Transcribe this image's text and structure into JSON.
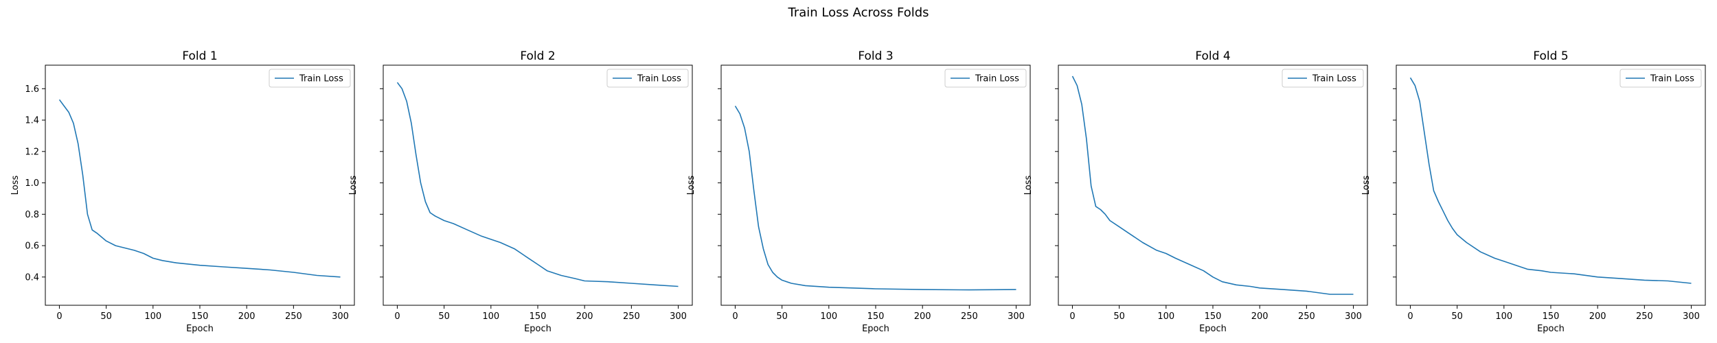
{
  "chart_data": {
    "title": "Train Loss Across Folds",
    "type": "line",
    "shared_y": true,
    "series_color": "#1f77b4",
    "legend_placement": "upper right",
    "grid": false,
    "xlabel": "Epoch",
    "ylabel": "Loss",
    "xlim": [
      -15,
      315
    ],
    "ylim": [
      0.22,
      1.75
    ],
    "xticks": [
      0,
      50,
      100,
      150,
      200,
      250,
      300
    ],
    "yticks": [
      0.4,
      0.6,
      0.8,
      1.0,
      1.2,
      1.4,
      1.6
    ],
    "panels": [
      {
        "title": "Fold 1",
        "series": [
          {
            "name": "Train Loss",
            "x": [
              0,
              5,
              10,
              15,
              20,
              25,
              30,
              35,
              40,
              50,
              60,
              70,
              80,
              90,
              100,
              110,
              125,
              150,
              175,
              200,
              225,
              250,
              275,
              300
            ],
            "y": [
              1.53,
              1.49,
              1.45,
              1.38,
              1.25,
              1.05,
              0.8,
              0.7,
              0.68,
              0.63,
              0.6,
              0.585,
              0.57,
              0.55,
              0.52,
              0.505,
              0.49,
              0.475,
              0.465,
              0.455,
              0.445,
              0.43,
              0.41,
              0.4
            ]
          }
        ]
      },
      {
        "title": "Fold 2",
        "series": [
          {
            "name": "Train Loss",
            "x": [
              0,
              5,
              10,
              15,
              20,
              25,
              30,
              35,
              40,
              50,
              60,
              75,
              90,
              100,
              110,
              125,
              140,
              150,
              160,
              175,
              190,
              200,
              225,
              250,
              275,
              300
            ],
            "y": [
              1.64,
              1.6,
              1.52,
              1.38,
              1.18,
              1.0,
              0.88,
              0.81,
              0.79,
              0.76,
              0.74,
              0.7,
              0.66,
              0.64,
              0.62,
              0.58,
              0.52,
              0.48,
              0.44,
              0.41,
              0.39,
              0.375,
              0.37,
              0.36,
              0.35,
              0.34
            ]
          }
        ]
      },
      {
        "title": "Fold 3",
        "series": [
          {
            "name": "Train Loss",
            "x": [
              0,
              5,
              10,
              15,
              20,
              25,
              30,
              35,
              40,
              45,
              50,
              60,
              75,
              100,
              125,
              150,
              200,
              250,
              300
            ],
            "y": [
              1.49,
              1.44,
              1.35,
              1.2,
              0.95,
              0.72,
              0.58,
              0.48,
              0.43,
              0.4,
              0.38,
              0.36,
              0.345,
              0.335,
              0.33,
              0.325,
              0.32,
              0.318,
              0.32
            ]
          }
        ]
      },
      {
        "title": "Fold 4",
        "series": [
          {
            "name": "Train Loss",
            "x": [
              0,
              5,
              10,
              15,
              20,
              25,
              30,
              35,
              40,
              50,
              60,
              75,
              90,
              100,
              110,
              125,
              140,
              150,
              160,
              175,
              190,
              200,
              225,
              250,
              275,
              300
            ],
            "y": [
              1.68,
              1.62,
              1.5,
              1.28,
              0.98,
              0.85,
              0.83,
              0.8,
              0.76,
              0.72,
              0.68,
              0.62,
              0.57,
              0.55,
              0.52,
              0.48,
              0.44,
              0.4,
              0.37,
              0.35,
              0.34,
              0.33,
              0.32,
              0.31,
              0.29,
              0.29
            ]
          }
        ]
      },
      {
        "title": "Fold 5",
        "series": [
          {
            "name": "Train Loss",
            "x": [
              0,
              5,
              10,
              15,
              20,
              25,
              30,
              35,
              40,
              45,
              50,
              60,
              75,
              90,
              100,
              110,
              125,
              140,
              150,
              175,
              200,
              225,
              250,
              275,
              300
            ],
            "y": [
              1.67,
              1.62,
              1.52,
              1.32,
              1.12,
              0.95,
              0.88,
              0.82,
              0.76,
              0.71,
              0.67,
              0.62,
              0.56,
              0.52,
              0.5,
              0.48,
              0.45,
              0.44,
              0.43,
              0.42,
              0.4,
              0.39,
              0.38,
              0.375,
              0.36
            ]
          }
        ]
      }
    ]
  }
}
